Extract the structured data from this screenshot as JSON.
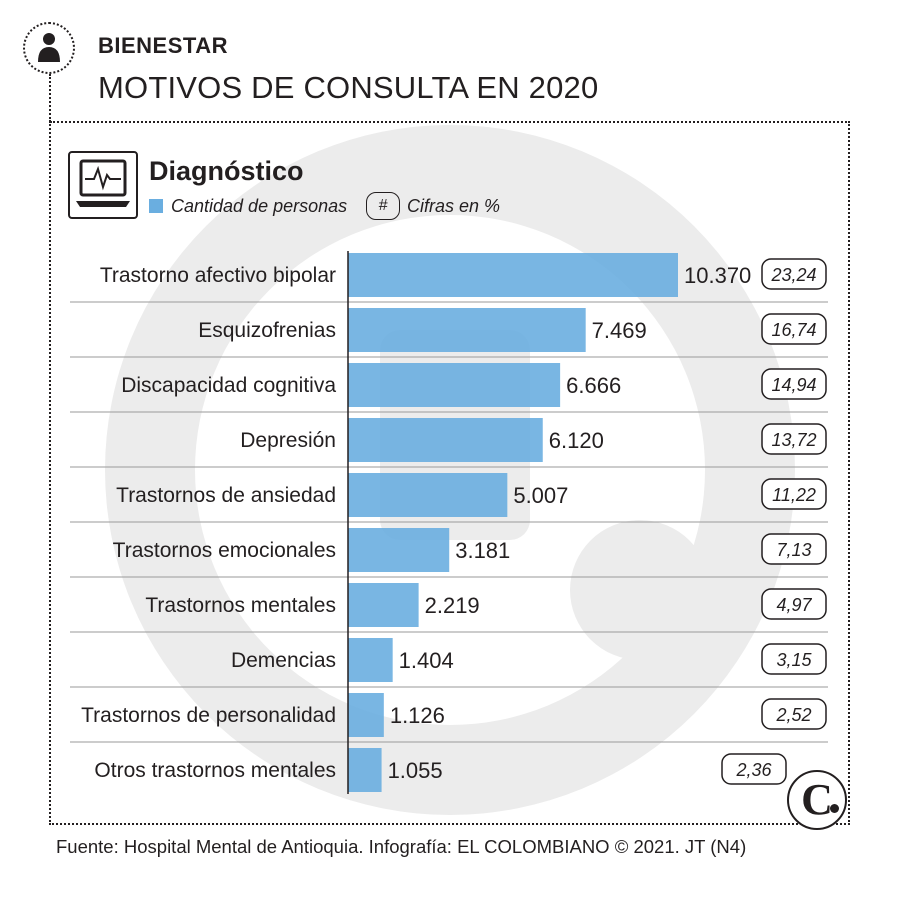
{
  "header": {
    "section": "BIENESTAR",
    "title": "MOTIVOS DE CONSULTA EN 2020"
  },
  "panel": {
    "subtitle": "Diagnóstico",
    "legend_bar": "Cantidad de personas",
    "legend_hash_symbol": "#",
    "legend_pct": "Cifras en %"
  },
  "colors": {
    "bar": "#6aaee0",
    "watermark": "#ececec",
    "ink": "#231f20",
    "gridline": "#9a9a9a"
  },
  "chart_data": {
    "type": "bar",
    "orientation": "horizontal",
    "title": "Diagnóstico",
    "categories": [
      "Trastorno afectivo bipolar",
      "Esquizofrenias",
      "Discapacidad cognitiva",
      "Depresión",
      "Trastornos de ansiedad",
      "Trastornos emocionales",
      "Trastornos mentales",
      "Demencias",
      "Trastornos de personalidad",
      "Otros trastornos mentales"
    ],
    "values": [
      10370,
      7469,
      6666,
      6120,
      5007,
      3181,
      2219,
      1404,
      1126,
      1055
    ],
    "value_labels": [
      "10.370",
      "7.469",
      "6.666",
      "6.120",
      "5.007",
      "3.181",
      "2.219",
      "1.404",
      "1.126",
      "1.055"
    ],
    "percentages": [
      23.24,
      16.74,
      14.94,
      13.72,
      11.22,
      7.13,
      4.97,
      3.15,
      2.52,
      2.36
    ],
    "percentage_labels": [
      "23,24",
      "16,74",
      "14,94",
      "13,72",
      "11,22",
      "7,13",
      "4,97",
      "3,15",
      "2,52",
      "2,36"
    ],
    "series_name": "Cantidad de personas",
    "xlim": [
      0,
      10370
    ],
    "xlabel": "",
    "ylabel": ""
  },
  "footer": {
    "source": "Fuente: Hospital Mental de Antioquia. Infografía: EL COLOMBIANO © 2021. JT (N4)",
    "logo": "C"
  },
  "icons": {
    "person": "person-icon",
    "computer": "computer-monitor-icon"
  }
}
